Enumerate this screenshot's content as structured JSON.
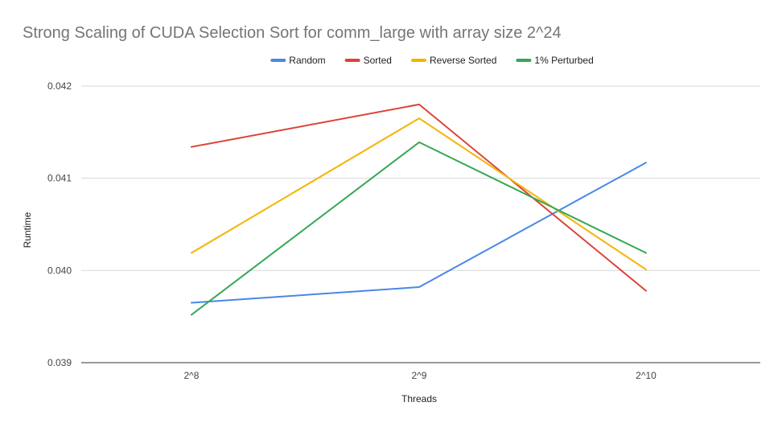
{
  "chart_data": {
    "type": "line",
    "title": "Strong Scaling of CUDA Selection Sort for comm_large with array size 2^24",
    "xlabel": "Threads",
    "ylabel": "Runtime",
    "categories": [
      "2^8",
      "2^9",
      "2^10"
    ],
    "ylim": [
      0.039,
      0.042
    ],
    "yticks": [
      "0.039",
      "0.040",
      "0.041",
      "0.042"
    ],
    "grid": true,
    "legend_position": "top",
    "series": [
      {
        "name": "Random",
        "color": "#4a86e8",
        "values": [
          0.03965,
          0.03982,
          0.04117
        ]
      },
      {
        "name": "Sorted",
        "color": "#db4437",
        "values": [
          0.04134,
          0.0418,
          0.03978
        ]
      },
      {
        "name": "Reverse Sorted",
        "color": "#f4b400",
        "values": [
          0.04019,
          0.04165,
          0.04001
        ]
      },
      {
        "name": "1% Perturbed",
        "color": "#34a853",
        "values": [
          0.03952,
          0.04139,
          0.04019
        ]
      }
    ]
  }
}
